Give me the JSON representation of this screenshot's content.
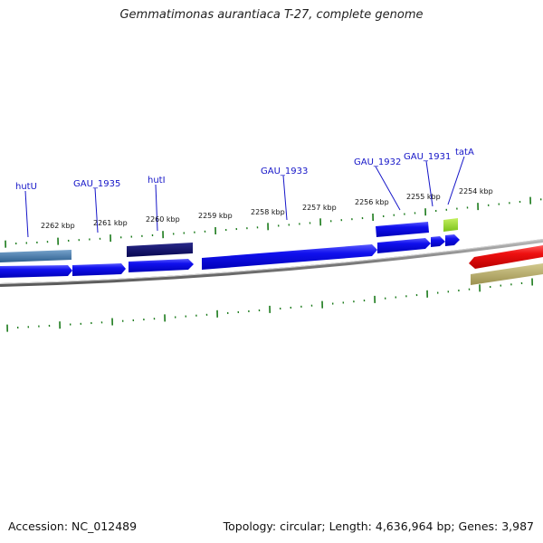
{
  "title": "Gemmatimonas aurantiaca T-27, complete genome",
  "footer": {
    "accession": "Accession: NC_012489",
    "summary": "Topology: circular; Length: 4,636,964 bp; Genes: 3,987"
  },
  "colors": {
    "backbone": "#808080",
    "forward_gene": "#1111ee",
    "reverse_gene": "#ee1111",
    "dark_gene": "#0a0a66",
    "steel_gene": "#4477aa",
    "rna_gene": "#99dd22",
    "olive_gene": "#b8ad6a",
    "tick": "#1a7a1a",
    "label": "#1515c8"
  },
  "scale": {
    "unit": "kbp",
    "labels": [
      "2262 kbp",
      "2261 kbp",
      "2260 kbp",
      "2259 kbp",
      "2258 kbp",
      "2257 kbp",
      "2256 kbp",
      "2255 kbp",
      "2254 kbp"
    ]
  },
  "gene_labels": [
    "hutU",
    "GAU_1935",
    "hutI",
    "GAU_1933",
    "GAU_1932",
    "GAU_1931",
    "tatA"
  ]
}
